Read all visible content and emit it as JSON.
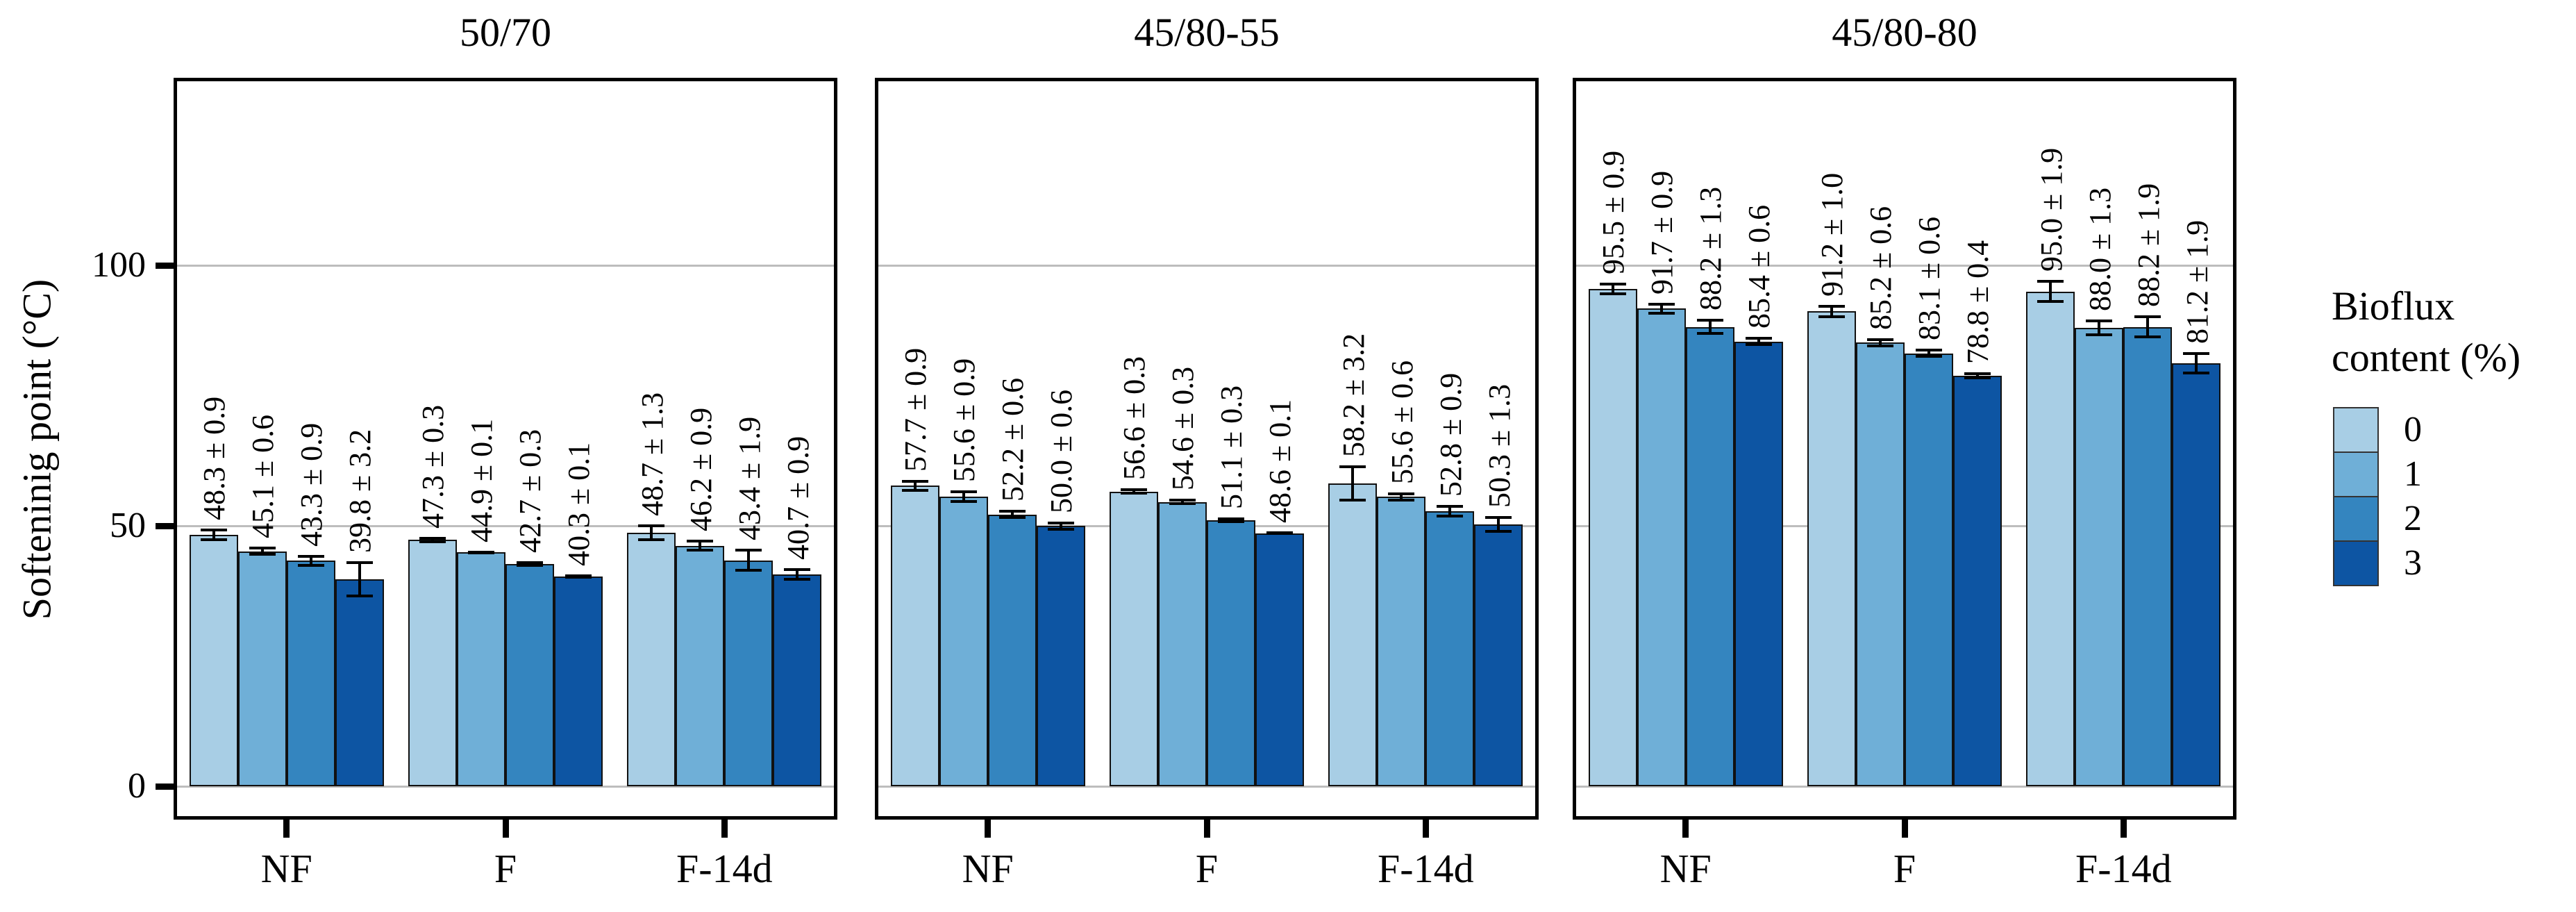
{
  "figure": {
    "y_axis_title": "Softeninig point (°C)",
    "colors": {
      "background": "#FFFFFF",
      "panel_border": "#000000",
      "gridline": "#BDBDBD",
      "bar_border": "#111111",
      "error_bar": "#000000",
      "text": "#000000",
      "bar_fills": [
        "#A8CEE5",
        "#6FAFD7",
        "#3485BF",
        "#0D55A3"
      ]
    }
  },
  "legend": {
    "title_lines": [
      "Bioflux",
      "content (%)"
    ],
    "items": [
      {
        "label": "0",
        "color": "#A8CEE5"
      },
      {
        "label": "1",
        "color": "#6FAFD7"
      },
      {
        "label": "2",
        "color": "#3485BF"
      },
      {
        "label": "3",
        "color": "#0D55A3"
      }
    ]
  },
  "chart_data": {
    "type": "bar",
    "title": "",
    "xlabel": "",
    "ylabel": "Softeninig point (°C)",
    "ylim": [
      0,
      130
    ],
    "y_ticks": [
      0,
      50,
      100
    ],
    "grid": "major-y-only",
    "legend_title": "Bioflux content (%)",
    "legend_position": "right",
    "legend_entries": [
      "0",
      "1",
      "2",
      "3"
    ],
    "value_labels": "mean ± sd, rotated 90 deg above error bars",
    "facets": [
      {
        "title": "50/70",
        "categories": [
          "NF",
          "F",
          "F-14d"
        ],
        "series": [
          {
            "name": "0",
            "values": [
              48.3,
              47.3,
              48.7
            ],
            "errors": [
              0.9,
              0.3,
              1.3
            ]
          },
          {
            "name": "1",
            "values": [
              45.1,
              44.9,
              46.2
            ],
            "errors": [
              0.6,
              0.1,
              0.9
            ]
          },
          {
            "name": "2",
            "values": [
              43.3,
              42.7,
              43.4
            ],
            "errors": [
              0.9,
              0.3,
              1.9
            ]
          },
          {
            "name": "3",
            "values": [
              39.8,
              40.3,
              40.7
            ],
            "errors": [
              3.2,
              0.1,
              0.9
            ]
          }
        ]
      },
      {
        "title": "45/80-55",
        "categories": [
          "NF",
          "F",
          "F-14d"
        ],
        "series": [
          {
            "name": "0",
            "values": [
              57.7,
              56.6,
              58.2
            ],
            "errors": [
              0.9,
              0.3,
              3.2
            ]
          },
          {
            "name": "1",
            "values": [
              55.6,
              54.6,
              55.6
            ],
            "errors": [
              0.9,
              0.3,
              0.6
            ]
          },
          {
            "name": "2",
            "values": [
              52.2,
              51.1,
              52.8
            ],
            "errors": [
              0.6,
              0.3,
              0.9
            ]
          },
          {
            "name": "3",
            "values": [
              50.0,
              48.6,
              50.3
            ],
            "errors": [
              0.6,
              0.1,
              1.3
            ]
          }
        ]
      },
      {
        "title": "45/80-80",
        "categories": [
          "NF",
          "F",
          "F-14d"
        ],
        "series": [
          {
            "name": "0",
            "values": [
              95.5,
              91.2,
              95.0
            ],
            "errors": [
              0.9,
              1.0,
              1.9
            ]
          },
          {
            "name": "1",
            "values": [
              91.7,
              85.2,
              88.0
            ],
            "errors": [
              0.9,
              0.6,
              1.3
            ]
          },
          {
            "name": "2",
            "values": [
              88.2,
              83.1,
              88.2
            ],
            "errors": [
              1.3,
              0.6,
              1.9
            ]
          },
          {
            "name": "3",
            "values": [
              85.4,
              78.8,
              81.2
            ],
            "errors": [
              0.6,
              0.4,
              1.9
            ]
          }
        ]
      }
    ]
  }
}
